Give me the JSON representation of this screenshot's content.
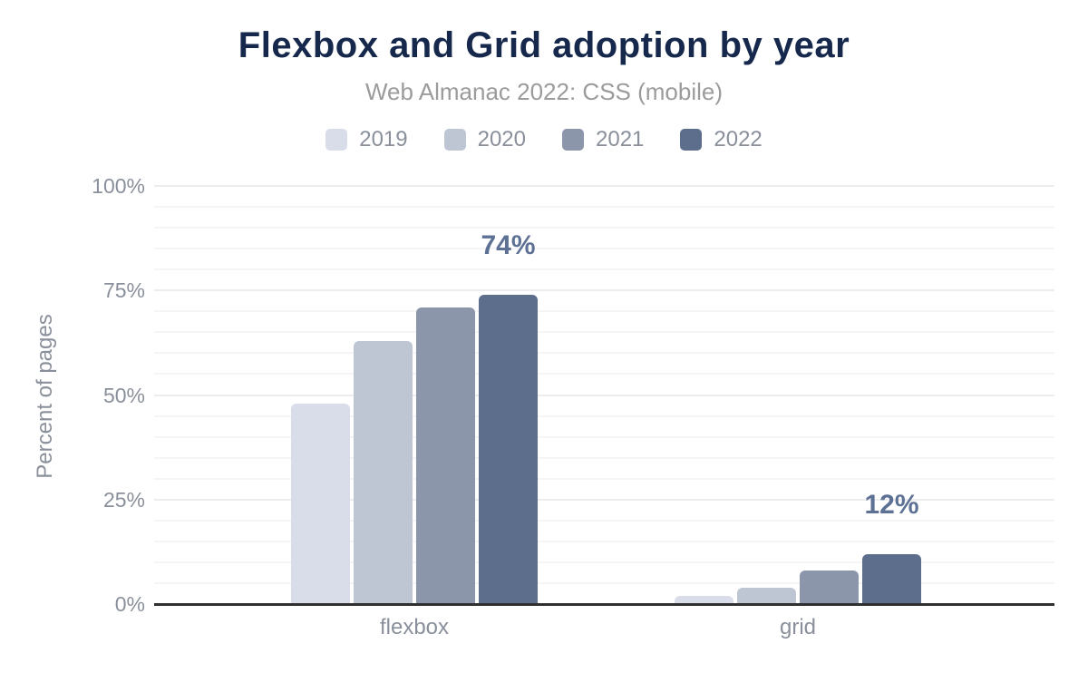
{
  "header": {
    "title": "Flexbox and Grid adoption by year",
    "subtitle": "Web Almanac 2022: CSS (mobile)"
  },
  "chart_data": {
    "type": "bar",
    "title": "Flexbox and Grid adoption by year",
    "subtitle": "Web Almanac 2022: CSS (mobile)",
    "categories": [
      "flexbox",
      "grid"
    ],
    "series": [
      {
        "name": "2019",
        "color": "#d8dde9",
        "values": [
          48,
          2
        ]
      },
      {
        "name": "2020",
        "color": "#bec6d3",
        "values": [
          63,
          4
        ]
      },
      {
        "name": "2021",
        "color": "#8b96ab",
        "values": [
          71,
          8
        ]
      },
      {
        "name": "2022",
        "color": "#5c6e8b",
        "values": [
          74,
          12
        ]
      }
    ],
    "annotations": [
      {
        "category": "flexbox",
        "series": "2022",
        "label": "74%"
      },
      {
        "category": "grid",
        "series": "2022",
        "label": "12%"
      }
    ],
    "xlabel": "",
    "ylabel": "Percent of pages",
    "ylim": [
      0,
      100
    ],
    "yticks": [
      0,
      25,
      50,
      75,
      100
    ],
    "ytick_labels": [
      "0%",
      "25%",
      "50%",
      "75%",
      "100%"
    ],
    "minor_grid_step": 5,
    "major_grid_step": 25,
    "grid": true,
    "legend_position": "top"
  },
  "colors": {
    "title": "#16294c",
    "subtitle": "#9b9b9b",
    "axis_text": "#8a909b",
    "data_label": "#5d7194",
    "axis_line": "#303030",
    "grid_minor": "#f5f5f7",
    "grid_major": "#ededef",
    "background": "#ffffff"
  }
}
